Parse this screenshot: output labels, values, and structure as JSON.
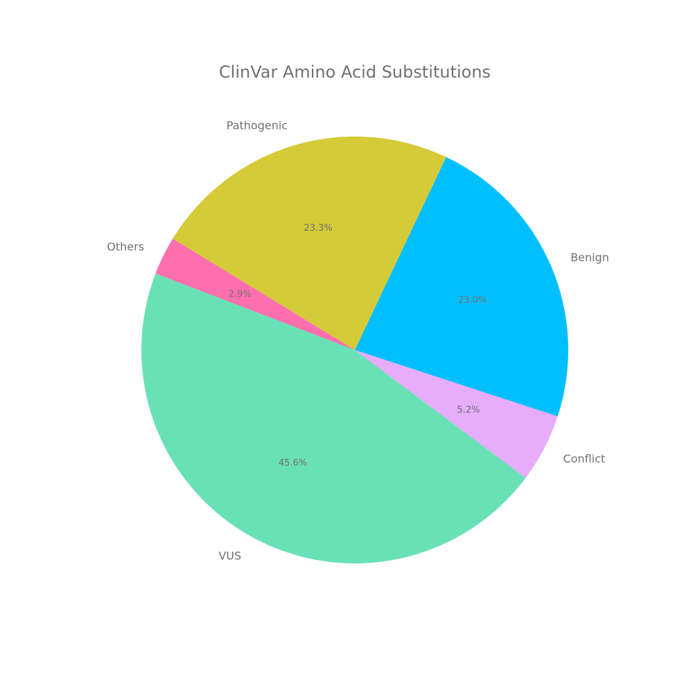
{
  "chart_data": {
    "type": "pie",
    "title": "ClinVar Amino Acid Substitutions",
    "start_angle_deg": 159,
    "direction": "counterclockwise",
    "slices": [
      {
        "label": "VUS",
        "value": 45.6,
        "pct_label": "45.6%",
        "color": "#69e1b6"
      },
      {
        "label": "Conflict",
        "value": 5.2,
        "pct_label": "5.2%",
        "color": "#e7acfa"
      },
      {
        "label": "Benign",
        "value": 23.0,
        "pct_label": "23.0%",
        "color": "#01bffe"
      },
      {
        "label": "Pathogenic",
        "value": 23.3,
        "pct_label": "23.3%",
        "color": "#d5ca38"
      },
      {
        "label": "Others",
        "value": 2.9,
        "pct_label": "2.9%",
        "color": "#fe6fad"
      }
    ]
  }
}
